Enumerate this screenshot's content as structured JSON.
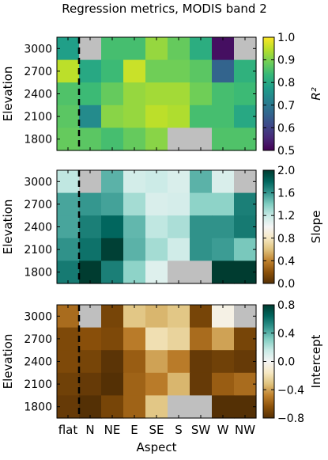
{
  "title": "Regression metrics, MODIS band 2",
  "x_label": "Aspect",
  "chart_data": [
    {
      "type": "heatmap",
      "panel_id": "r2",
      "ylabel": "Elevation",
      "colorbar_label": "R²",
      "colormap": "viridis",
      "vmin": 0.5,
      "vmax": 1.0,
      "colorbar_ticks": [
        "0.5",
        "0.6",
        "0.7",
        "0.8",
        "0.9",
        "1.0"
      ],
      "x_categories": [
        "flat",
        "N",
        "NE",
        "E",
        "SE",
        "S",
        "SW",
        "W",
        "NW"
      ],
      "y_categories": [
        "3000",
        "2700",
        "2400",
        "2100",
        "1800"
      ],
      "values": [
        [
          0.78,
          null,
          0.85,
          0.85,
          0.92,
          0.88,
          0.81,
          0.52,
          null
        ],
        [
          0.95,
          0.8,
          0.84,
          0.96,
          0.89,
          0.89,
          0.87,
          0.66,
          0.82
        ],
        [
          0.86,
          0.84,
          0.88,
          0.92,
          0.93,
          0.93,
          0.89,
          0.85,
          0.84
        ],
        [
          0.87,
          0.74,
          0.91,
          0.92,
          0.95,
          0.94,
          0.85,
          0.85,
          0.8
        ],
        [
          0.88,
          0.87,
          0.85,
          0.88,
          0.91,
          null,
          null,
          0.86,
          0.86
        ]
      ]
    },
    {
      "type": "heatmap",
      "panel_id": "slope",
      "ylabel": "Elevation",
      "colorbar_label": "Slope",
      "colormap": "BrBG",
      "vmin": 0.0,
      "vmax": 2.0,
      "colorbar_ticks": [
        "0.0",
        "0.4",
        "0.8",
        "1.2",
        "1.6",
        "2.0"
      ],
      "x_categories": [
        "flat",
        "N",
        "NE",
        "E",
        "SE",
        "S",
        "SW",
        "W",
        "NW"
      ],
      "y_categories": [
        "3000",
        "2700",
        "2400",
        "2100",
        "1800"
      ],
      "values": [
        [
          1.22,
          null,
          1.5,
          1.15,
          1.18,
          1.12,
          1.5,
          1.12,
          null
        ],
        [
          1.55,
          1.6,
          1.56,
          1.3,
          1.12,
          1.14,
          1.36,
          1.36,
          1.7
        ],
        [
          1.55,
          1.7,
          1.8,
          1.48,
          1.22,
          1.28,
          1.62,
          1.62,
          1.72
        ],
        [
          1.62,
          1.75,
          1.98,
          1.5,
          1.3,
          1.16,
          1.62,
          1.58,
          1.42
        ],
        [
          1.72,
          2.0,
          1.7,
          1.36,
          1.1,
          null,
          null,
          2.0,
          2.0
        ]
      ]
    },
    {
      "type": "heatmap",
      "panel_id": "intercept",
      "ylabel": "Elevation",
      "colorbar_label": "Intercept",
      "colormap": "BrBG",
      "vmin": -0.8,
      "vmax": 0.8,
      "colorbar_ticks": [
        "−0.8",
        "−0.4",
        "0.0",
        "0.4",
        "0.8"
      ],
      "x_categories": [
        "flat",
        "N",
        "NE",
        "E",
        "SE",
        "S",
        "SW",
        "W",
        "NW"
      ],
      "y_categories": [
        "3000",
        "2700",
        "2400",
        "2100",
        "1800"
      ],
      "values": [
        [
          -0.55,
          null,
          -0.7,
          -0.3,
          -0.35,
          -0.3,
          -0.7,
          -0.05,
          null
        ],
        [
          -0.68,
          -0.65,
          -0.68,
          -0.5,
          -0.2,
          -0.25,
          -0.55,
          -0.4,
          -0.7
        ],
        [
          -0.68,
          -0.7,
          -0.78,
          -0.6,
          -0.4,
          -0.5,
          -0.75,
          -0.72,
          -0.75
        ],
        [
          -0.72,
          -0.75,
          -0.8,
          -0.58,
          -0.5,
          -0.35,
          -0.75,
          -0.6,
          -0.55
        ],
        [
          -0.75,
          -0.8,
          -0.7,
          -0.58,
          -0.3,
          null,
          null,
          -0.8,
          -0.8
        ]
      ]
    }
  ],
  "missing_color": "#bfbfbf",
  "divider_after_category": "flat"
}
